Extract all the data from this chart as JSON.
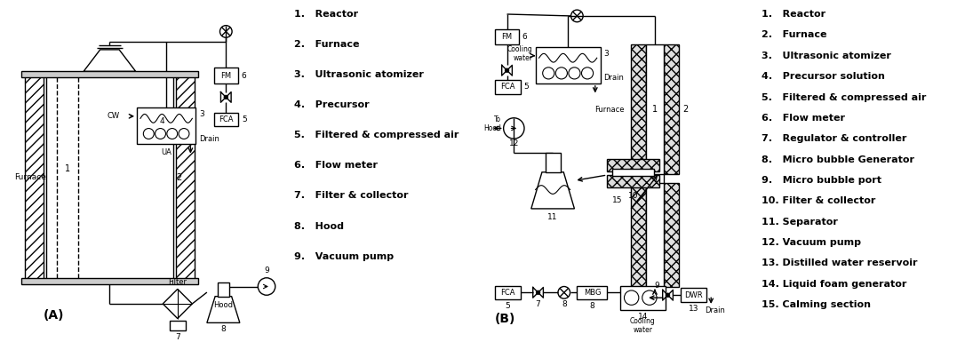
{
  "legend_A": [
    "1.   Reactor",
    "2.   Furnace",
    "3.   Ultrasonic atomizer",
    "4.   Precursor",
    "5.   Filtered & compressed air",
    "6.   Flow meter",
    "7.   Filter & collector",
    "8.   Hood",
    "9.   Vacuum pump"
  ],
  "legend_B": [
    "1.   Reactor",
    "2.   Furnace",
    "3.   Ultrasonic atomizer",
    "4.   Precursor solution",
    "5.   Filtered & compressed air",
    "6.   Flow meter",
    "7.   Regulator & controller",
    "8.   Micro bubble Generator",
    "9.   Micro bubble port",
    "10. Filter & collector",
    "11. Separator",
    "12. Vacuum pump",
    "13. Distilled water reservoir",
    "14. Liquid foam generator",
    "15. Calming section"
  ]
}
